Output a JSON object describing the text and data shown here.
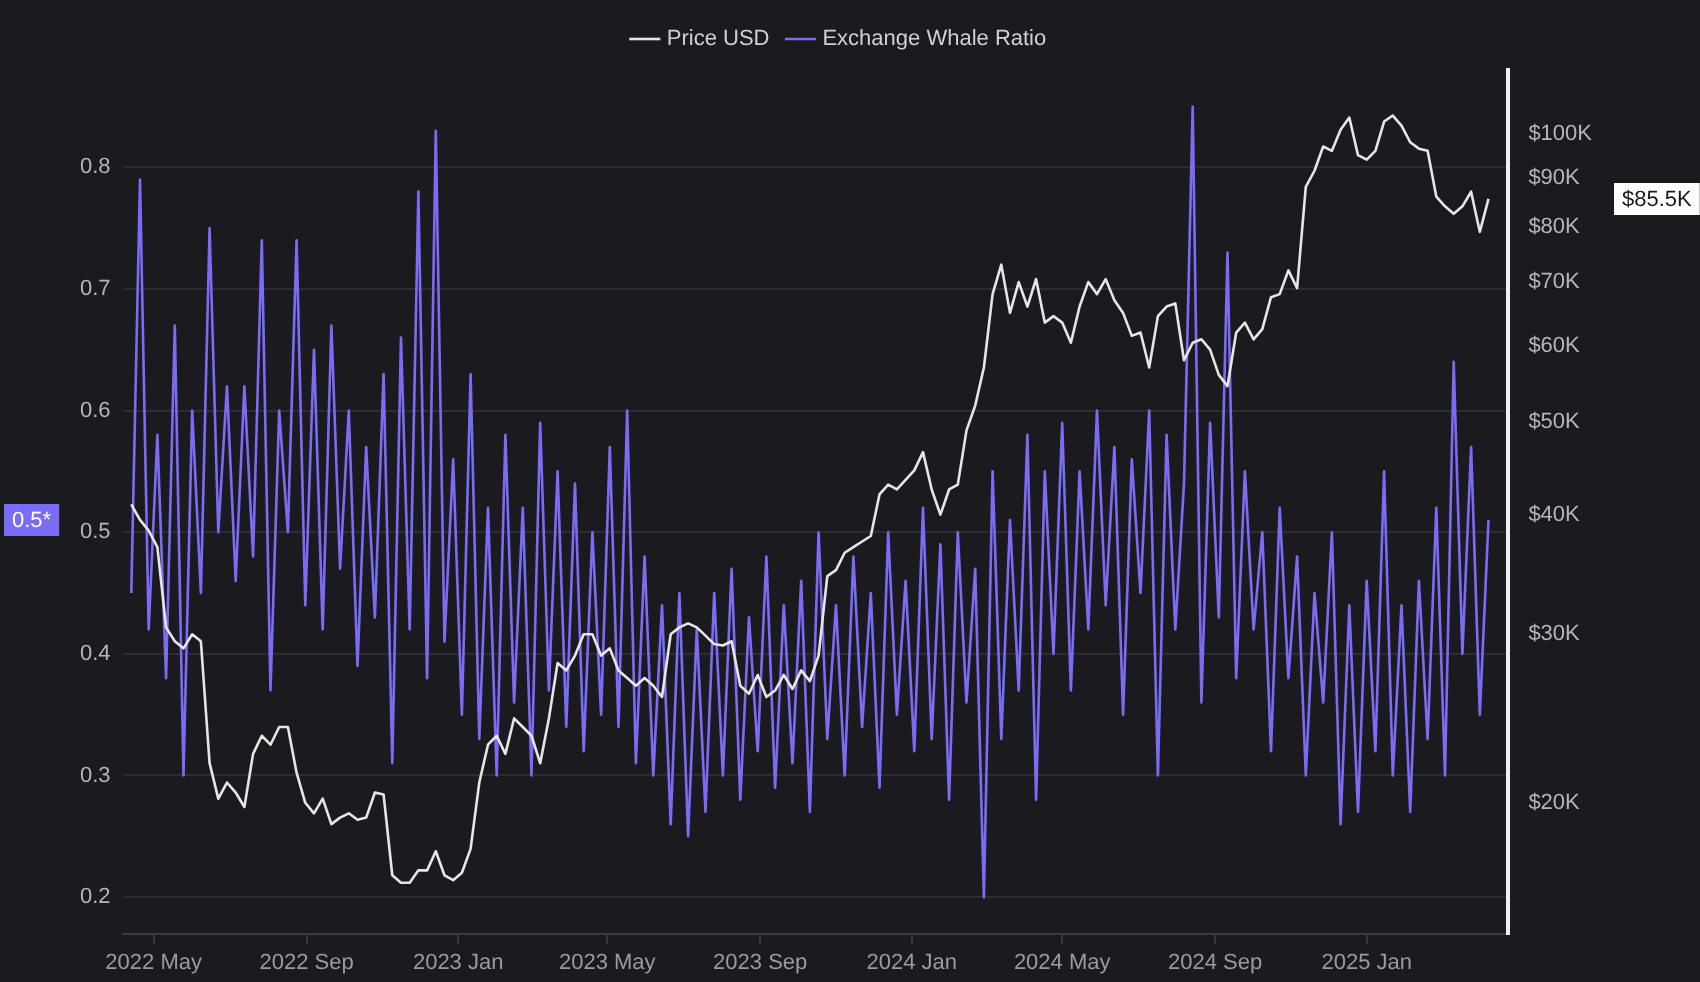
{
  "chart_data": {
    "type": "line",
    "x": [
      "2022-04-13",
      "2022-04-20",
      "2022-04-27",
      "2022-05-04",
      "2022-05-11",
      "2022-05-18",
      "2022-05-25",
      "2022-06-01",
      "2022-06-08",
      "2022-06-15",
      "2022-06-22",
      "2022-06-29",
      "2022-07-06",
      "2022-07-13",
      "2022-07-20",
      "2022-07-27",
      "2022-08-03",
      "2022-08-10",
      "2022-08-17",
      "2022-08-24",
      "2022-08-31",
      "2022-09-07",
      "2022-09-14",
      "2022-09-21",
      "2022-09-28",
      "2022-10-05",
      "2022-10-12",
      "2022-10-19",
      "2022-10-26",
      "2022-11-02",
      "2022-11-09",
      "2022-11-16",
      "2022-11-23",
      "2022-11-30",
      "2022-12-07",
      "2022-12-14",
      "2022-12-21",
      "2022-12-28",
      "2023-01-04",
      "2023-01-11",
      "2023-01-18",
      "2023-01-25",
      "2023-02-01",
      "2023-02-08",
      "2023-02-15",
      "2023-02-22",
      "2023-03-01",
      "2023-03-08",
      "2023-03-15",
      "2023-03-22",
      "2023-03-29",
      "2023-04-05",
      "2023-04-12",
      "2023-04-19",
      "2023-04-26",
      "2023-05-03",
      "2023-05-10",
      "2023-05-17",
      "2023-05-24",
      "2023-05-31",
      "2023-06-07",
      "2023-06-14",
      "2023-06-21",
      "2023-06-28",
      "2023-07-05",
      "2023-07-12",
      "2023-07-19",
      "2023-07-26",
      "2023-08-02",
      "2023-08-09",
      "2023-08-16",
      "2023-08-23",
      "2023-08-30",
      "2023-09-06",
      "2023-09-13",
      "2023-09-20",
      "2023-09-27",
      "2023-10-04",
      "2023-10-11",
      "2023-10-18",
      "2023-10-25",
      "2023-11-01",
      "2023-11-08",
      "2023-11-15",
      "2023-11-22",
      "2023-11-29",
      "2023-12-06",
      "2023-12-13",
      "2023-12-20",
      "2023-12-27",
      "2024-01-03",
      "2024-01-10",
      "2024-01-17",
      "2024-01-24",
      "2024-01-31",
      "2024-02-07",
      "2024-02-14",
      "2024-02-21",
      "2024-02-28",
      "2024-03-06",
      "2024-03-13",
      "2024-03-20",
      "2024-03-27",
      "2024-04-03",
      "2024-04-10",
      "2024-04-17",
      "2024-04-24",
      "2024-05-01",
      "2024-05-08",
      "2024-05-15",
      "2024-05-22",
      "2024-05-29",
      "2024-06-05",
      "2024-06-12",
      "2024-06-19",
      "2024-06-26",
      "2024-07-03",
      "2024-07-10",
      "2024-07-17",
      "2024-07-24",
      "2024-07-31",
      "2024-08-07",
      "2024-08-14",
      "2024-08-21",
      "2024-08-28",
      "2024-09-04",
      "2024-09-11",
      "2024-09-18",
      "2024-09-25",
      "2024-10-02",
      "2024-10-09",
      "2024-10-16",
      "2024-10-23",
      "2024-10-30",
      "2024-11-06",
      "2024-11-13",
      "2024-11-20",
      "2024-11-27",
      "2024-12-04",
      "2024-12-11",
      "2024-12-18",
      "2024-12-25",
      "2025-01-01",
      "2025-01-08",
      "2025-01-15",
      "2025-01-22",
      "2025-01-29",
      "2025-02-05",
      "2025-02-12",
      "2025-02-19",
      "2025-02-26",
      "2025-03-05",
      "2025-03-12",
      "2025-03-19",
      "2025-03-26",
      "2025-04-02",
      "2025-04-09"
    ],
    "series": [
      {
        "name": "Price USD",
        "color": "#e6e6e6",
        "axis": "y2",
        "values": [
          41000,
          39500,
          38500,
          37000,
          30500,
          29500,
          29000,
          30000,
          29500,
          22000,
          20200,
          21000,
          20500,
          19800,
          22500,
          23500,
          23000,
          24000,
          24000,
          21500,
          20000,
          19500,
          20200,
          19000,
          19300,
          19500,
          19200,
          19300,
          20500,
          20400,
          16800,
          16500,
          16500,
          17000,
          17000,
          17800,
          16800,
          16600,
          16900,
          17900,
          21000,
          23000,
          23500,
          22500,
          24500,
          24000,
          23500,
          22000,
          24500,
          28000,
          27500,
          28500,
          30000,
          30000,
          28500,
          29000,
          27500,
          27000,
          26500,
          27000,
          26500,
          25800,
          30000,
          30500,
          30800,
          30500,
          29900,
          29300,
          29200,
          29500,
          26500,
          26000,
          27200,
          25800,
          26200,
          27200,
          26300,
          27500,
          26800,
          28500,
          34500,
          35000,
          36500,
          37000,
          37500,
          38000,
          42000,
          43000,
          42500,
          43500,
          44500,
          46500,
          42500,
          40000,
          42500,
          43000,
          49000,
          52000,
          57000,
          68000,
          73000,
          65000,
          70000,
          66000,
          70500,
          63500,
          64500,
          63500,
          60500,
          66000,
          70000,
          68000,
          70500,
          67000,
          65000,
          61500,
          62000,
          57000,
          64500,
          66000,
          66500,
          58000,
          60500,
          61000,
          59500,
          56000,
          54500,
          62000,
          63500,
          61000,
          62500,
          67500,
          68000,
          72000,
          69000,
          88000,
          91500,
          97000,
          96000,
          101000,
          104000,
          95000,
          94000,
          96000,
          103000,
          104500,
          102000,
          98000,
          96500,
          96000,
          86000,
          84000,
          82500,
          84000,
          87000,
          79000,
          85500
        ]
      },
      {
        "name": "Exchange Whale Ratio",
        "color": "#7b6cf6",
        "axis": "y",
        "values": [
          0.45,
          0.79,
          0.42,
          0.58,
          0.38,
          0.67,
          0.3,
          0.6,
          0.45,
          0.75,
          0.5,
          0.62,
          0.46,
          0.62,
          0.48,
          0.74,
          0.37,
          0.6,
          0.5,
          0.74,
          0.44,
          0.65,
          0.42,
          0.67,
          0.47,
          0.6,
          0.39,
          0.57,
          0.43,
          0.63,
          0.31,
          0.66,
          0.42,
          0.78,
          0.38,
          0.83,
          0.41,
          0.56,
          0.35,
          0.63,
          0.33,
          0.52,
          0.3,
          0.58,
          0.36,
          0.52,
          0.3,
          0.59,
          0.37,
          0.55,
          0.34,
          0.54,
          0.32,
          0.5,
          0.35,
          0.57,
          0.34,
          0.6,
          0.31,
          0.48,
          0.3,
          0.44,
          0.26,
          0.45,
          0.25,
          0.42,
          0.27,
          0.45,
          0.3,
          0.47,
          0.28,
          0.43,
          0.32,
          0.48,
          0.29,
          0.44,
          0.31,
          0.46,
          0.27,
          0.5,
          0.33,
          0.44,
          0.3,
          0.48,
          0.34,
          0.45,
          0.29,
          0.5,
          0.35,
          0.46,
          0.32,
          0.52,
          0.33,
          0.49,
          0.28,
          0.5,
          0.36,
          0.47,
          0.2,
          0.55,
          0.33,
          0.51,
          0.37,
          0.58,
          0.28,
          0.55,
          0.4,
          0.59,
          0.37,
          0.55,
          0.42,
          0.6,
          0.44,
          0.57,
          0.35,
          0.56,
          0.45,
          0.6,
          0.3,
          0.58,
          0.42,
          0.54,
          0.85,
          0.36,
          0.59,
          0.43,
          0.73,
          0.38,
          0.55,
          0.42,
          0.5,
          0.32,
          0.52,
          0.38,
          0.48,
          0.3,
          0.45,
          0.36,
          0.5,
          0.26,
          0.44,
          0.27,
          0.46,
          0.32,
          0.55,
          0.3,
          0.44,
          0.27,
          0.46,
          0.33,
          0.52,
          0.3,
          0.64,
          0.4,
          0.57,
          0.35,
          0.51
        ]
      }
    ],
    "xlim": [
      "2022-04-06",
      "2025-04-25"
    ],
    "xticks": [
      {
        "value": "2022-05-01",
        "label": "2022 May"
      },
      {
        "value": "2022-09-01",
        "label": "2022 Sep"
      },
      {
        "value": "2023-01-01",
        "label": "2023 Jan"
      },
      {
        "value": "2023-05-01",
        "label": "2023 May"
      },
      {
        "value": "2023-09-01",
        "label": "2023 Sep"
      },
      {
        "value": "2024-01-01",
        "label": "2024 Jan"
      },
      {
        "value": "2024-05-01",
        "label": "2024 May"
      },
      {
        "value": "2024-09-01",
        "label": "2024 Sep"
      },
      {
        "value": "2025-01-01",
        "label": "2025 Jan"
      }
    ],
    "ylim": [
      0.17,
      0.88
    ],
    "yticks": [
      0.2,
      0.3,
      0.4,
      0.5,
      0.6,
      0.7,
      0.8
    ],
    "y2lim": [
      14600,
      116600
    ],
    "y2ticks": [
      {
        "value": 20000,
        "label": "$20K"
      },
      {
        "value": 30000,
        "label": "$30K"
      },
      {
        "value": 40000,
        "label": "$40K"
      },
      {
        "value": 50000,
        "label": "$50K"
      },
      {
        "value": 60000,
        "label": "$60K"
      },
      {
        "value": 70000,
        "label": "$70K"
      },
      {
        "value": 80000,
        "label": "$80K"
      },
      {
        "value": 90000,
        "label": "$90K"
      },
      {
        "value": 100000,
        "label": "$100K"
      }
    ],
    "log": "y2",
    "grid": "y",
    "legend": "top",
    "marker": "none",
    "line_style": "solid",
    "annotations": [
      "$85.5K",
      "0.5*"
    ]
  }
}
